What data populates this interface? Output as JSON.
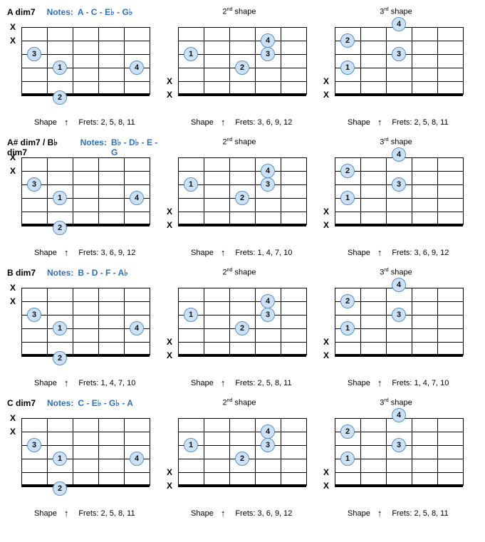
{
  "style": {
    "frets": 5,
    "strings": 6,
    "fret_w": 36,
    "string_h": 19,
    "dot_fill": "#cde1f4",
    "dot_border": "#5b8fc7",
    "notes_color": "#2b6fc4"
  },
  "chords": [
    {
      "name": "A dim7",
      "notes": "A - C - E♭ - G♭",
      "shapes": [
        {
          "label": "",
          "mutes": [
            0,
            1
          ],
          "nut_mutes": [],
          "frets": "Frets: 2, 5, 8, 11",
          "dots": [
            {
              "s": 2,
              "f": 1,
              "n": "3"
            },
            {
              "s": 3,
              "f": 2,
              "n": "1"
            },
            {
              "s": 3,
              "f": 5,
              "n": "4"
            },
            {
              "s": 4,
              "f": 2,
              "n": "2",
              "below": true
            }
          ]
        },
        {
          "label": "2nd shape",
          "mutes": [],
          "nut_mutes": [
            4,
            5
          ],
          "frets": "Frets: 3, 6, 9, 12",
          "dots": [
            {
              "s": 1,
              "f": 4,
              "n": "4"
            },
            {
              "s": 2,
              "f": 1,
              "n": "1"
            },
            {
              "s": 2,
              "f": 4,
              "n": "3"
            },
            {
              "s": 3,
              "f": 3,
              "n": "2"
            }
          ]
        },
        {
          "label": "3rd shape",
          "mutes": [],
          "nut_mutes": [
            4,
            5
          ],
          "frets": "Frets: 2, 5, 8, 11",
          "dots": [
            {
              "s": 0,
              "f": 3,
              "n": "4",
              "above": true
            },
            {
              "s": 1,
              "f": 1,
              "n": "2"
            },
            {
              "s": 2,
              "f": 3,
              "n": "3"
            },
            {
              "s": 3,
              "f": 1,
              "n": "1"
            }
          ]
        }
      ]
    },
    {
      "name": "A# dim7 / B♭ dim7",
      "notes": "B♭ - D♭ - E - G",
      "shapes": [
        {
          "label": "",
          "mutes": [
            0,
            1
          ],
          "nut_mutes": [],
          "frets": "Frets: 3, 6, 9, 12",
          "dots": [
            {
              "s": 2,
              "f": 1,
              "n": "3"
            },
            {
              "s": 3,
              "f": 2,
              "n": "1"
            },
            {
              "s": 3,
              "f": 5,
              "n": "4"
            },
            {
              "s": 4,
              "f": 2,
              "n": "2",
              "below": true
            }
          ]
        },
        {
          "label": "2nd shape",
          "mutes": [],
          "nut_mutes": [
            4,
            5
          ],
          "frets": "Frets: 1, 4, 7, 10",
          "dots": [
            {
              "s": 1,
              "f": 4,
              "n": "4"
            },
            {
              "s": 2,
              "f": 1,
              "n": "1"
            },
            {
              "s": 2,
              "f": 4,
              "n": "3"
            },
            {
              "s": 3,
              "f": 3,
              "n": "2"
            }
          ]
        },
        {
          "label": "3rd shape",
          "mutes": [],
          "nut_mutes": [
            4,
            5
          ],
          "frets": "Frets: 3, 6, 9, 12",
          "dots": [
            {
              "s": 0,
              "f": 3,
              "n": "4",
              "above": true
            },
            {
              "s": 1,
              "f": 1,
              "n": "2"
            },
            {
              "s": 2,
              "f": 3,
              "n": "3"
            },
            {
              "s": 3,
              "f": 1,
              "n": "1"
            }
          ]
        }
      ]
    },
    {
      "name": "B dim7",
      "notes": "B - D - F - A♭",
      "shapes": [
        {
          "label": "",
          "mutes": [
            0,
            1
          ],
          "nut_mutes": [],
          "frets": "Frets: 1, 4, 7, 10",
          "dots": [
            {
              "s": 2,
              "f": 1,
              "n": "3"
            },
            {
              "s": 3,
              "f": 2,
              "n": "1"
            },
            {
              "s": 3,
              "f": 5,
              "n": "4"
            },
            {
              "s": 4,
              "f": 2,
              "n": "2",
              "below": true
            }
          ]
        },
        {
          "label": "2nd shape",
          "mutes": [],
          "nut_mutes": [
            4,
            5
          ],
          "frets": "Frets: 2, 5, 8, 11",
          "dots": [
            {
              "s": 1,
              "f": 4,
              "n": "4"
            },
            {
              "s": 2,
              "f": 1,
              "n": "1"
            },
            {
              "s": 2,
              "f": 4,
              "n": "3"
            },
            {
              "s": 3,
              "f": 3,
              "n": "2"
            }
          ]
        },
        {
          "label": "3rd shape",
          "mutes": [],
          "nut_mutes": [
            4,
            5
          ],
          "frets": "Frets: 1, 4, 7, 10",
          "dots": [
            {
              "s": 0,
              "f": 3,
              "n": "4",
              "above": true
            },
            {
              "s": 1,
              "f": 1,
              "n": "2"
            },
            {
              "s": 2,
              "f": 3,
              "n": "3"
            },
            {
              "s": 3,
              "f": 1,
              "n": "1"
            }
          ]
        }
      ]
    },
    {
      "name": "C dim7",
      "notes": "C - E♭ - G♭ - A",
      "shapes": [
        {
          "label": "",
          "mutes": [
            0,
            1
          ],
          "nut_mutes": [],
          "frets": "Frets: 2, 5, 8, 11",
          "dots": [
            {
              "s": 2,
              "f": 1,
              "n": "3"
            },
            {
              "s": 3,
              "f": 2,
              "n": "1"
            },
            {
              "s": 3,
              "f": 5,
              "n": "4"
            },
            {
              "s": 4,
              "f": 2,
              "n": "2",
              "below": true
            }
          ]
        },
        {
          "label": "2nd shape",
          "mutes": [],
          "nut_mutes": [
            4,
            5
          ],
          "frets": "Frets: 3, 6, 9, 12",
          "dots": [
            {
              "s": 1,
              "f": 4,
              "n": "4"
            },
            {
              "s": 2,
              "f": 1,
              "n": "1"
            },
            {
              "s": 2,
              "f": 4,
              "n": "3"
            },
            {
              "s": 3,
              "f": 3,
              "n": "2"
            }
          ]
        },
        {
          "label": "3rd shape",
          "mutes": [],
          "nut_mutes": [
            4,
            5
          ],
          "frets": "Frets: 2, 5, 8, 11",
          "dots": [
            {
              "s": 0,
              "f": 3,
              "n": "4",
              "above": true
            },
            {
              "s": 1,
              "f": 1,
              "n": "2"
            },
            {
              "s": 2,
              "f": 3,
              "n": "3"
            },
            {
              "s": 3,
              "f": 1,
              "n": "1"
            }
          ]
        }
      ]
    }
  ],
  "labels": {
    "notes_word": "Notes:",
    "shape_word": "Shape",
    "arrow": "↑"
  }
}
